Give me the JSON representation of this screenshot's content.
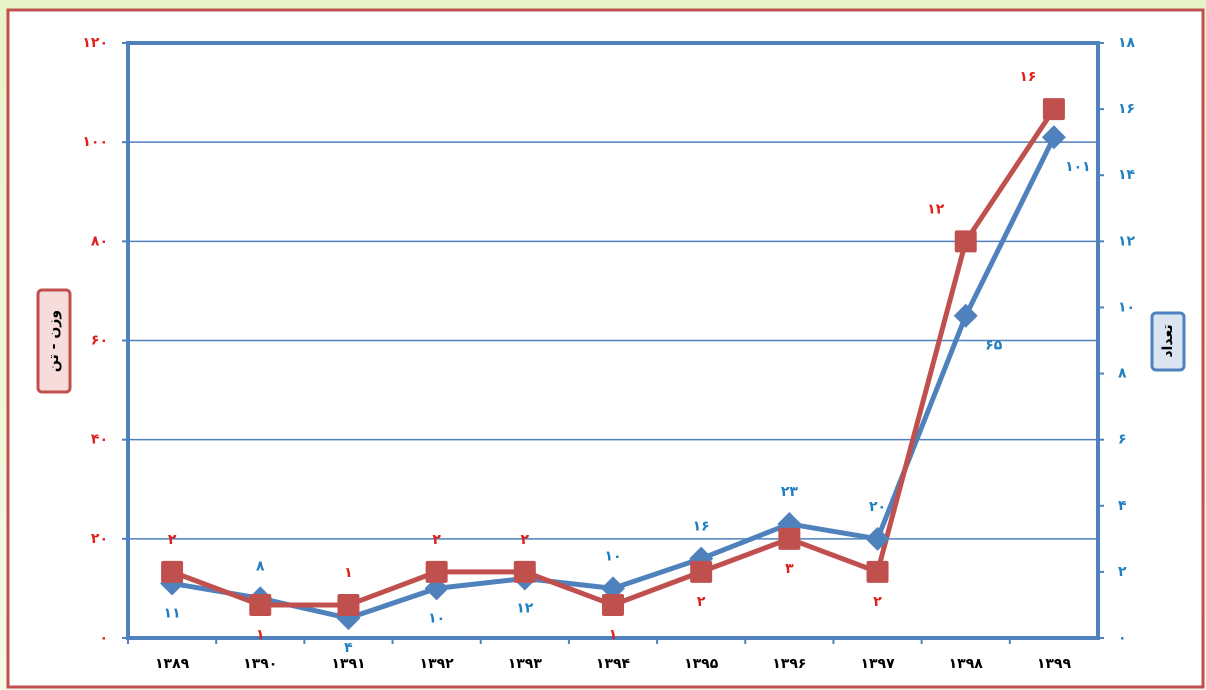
{
  "chart_data": {
    "type": "line",
    "y_label": "وزن - تن",
    "y2_label": "تعداد",
    "categories": [
      "۱۳۸۹",
      "۱۳۹۰",
      "۱۳۹۱",
      "۱۳۹۲",
      "۱۳۹۳",
      "۱۳۹۴",
      "۱۳۹۵",
      "۱۳۹۶",
      "۱۳۹۷",
      "۱۳۹۸",
      "۱۳۹۹"
    ],
    "series": [
      {
        "color": "#4f81bd",
        "axis": "y",
        "values": [
          11,
          8,
          4,
          10,
          12,
          10,
          16,
          23,
          20,
          65,
          101
        ],
        "value_labels": [
          "۱۱",
          "۸",
          "۴",
          "۱۰",
          "۱۲",
          "۱۰",
          "۱۶",
          "۲۳",
          "۲۰",
          "۶۵",
          "۱۰۱"
        ]
      },
      {
        "color": "#c0504d",
        "axis": "y2",
        "values": [
          2,
          1,
          1,
          2,
          2,
          1,
          2,
          3,
          2,
          12,
          16
        ],
        "value_labels": [
          "۲",
          "۱",
          "۱",
          "۲",
          "۲",
          "۱",
          "۲",
          "۳",
          "۲",
          "۱۲",
          "۱۶"
        ]
      }
    ],
    "ylim": [
      0,
      120
    ],
    "yticks": [
      {
        "value": 0,
        "label": "۰"
      },
      {
        "value": 20,
        "label": "۲۰"
      },
      {
        "value": 40,
        "label": "۴۰"
      },
      {
        "value": 60,
        "label": "۶۰"
      },
      {
        "value": 80,
        "label": "۸۰"
      },
      {
        "value": 100,
        "label": "۱۰۰"
      },
      {
        "value": 120,
        "label": "۱۲۰"
      }
    ],
    "y2lim": [
      0,
      18
    ],
    "y2ticks": [
      {
        "value": 0,
        "label": "۰"
      },
      {
        "value": 2,
        "label": "۲"
      },
      {
        "value": 4,
        "label": "۴"
      },
      {
        "value": 6,
        "label": "۶"
      },
      {
        "value": 8,
        "label": "۸"
      },
      {
        "value": 10,
        "label": "۱۰"
      },
      {
        "value": 12,
        "label": "۱۲"
      },
      {
        "value": 14,
        "label": "۱۴"
      },
      {
        "value": 16,
        "label": "۱۶"
      },
      {
        "value": 18,
        "label": "۱۸"
      }
    ],
    "ytick_color": "#e0201c",
    "y2tick_color": "#1f7fc0",
    "grid": true,
    "grid_color": "#4f81bd"
  }
}
